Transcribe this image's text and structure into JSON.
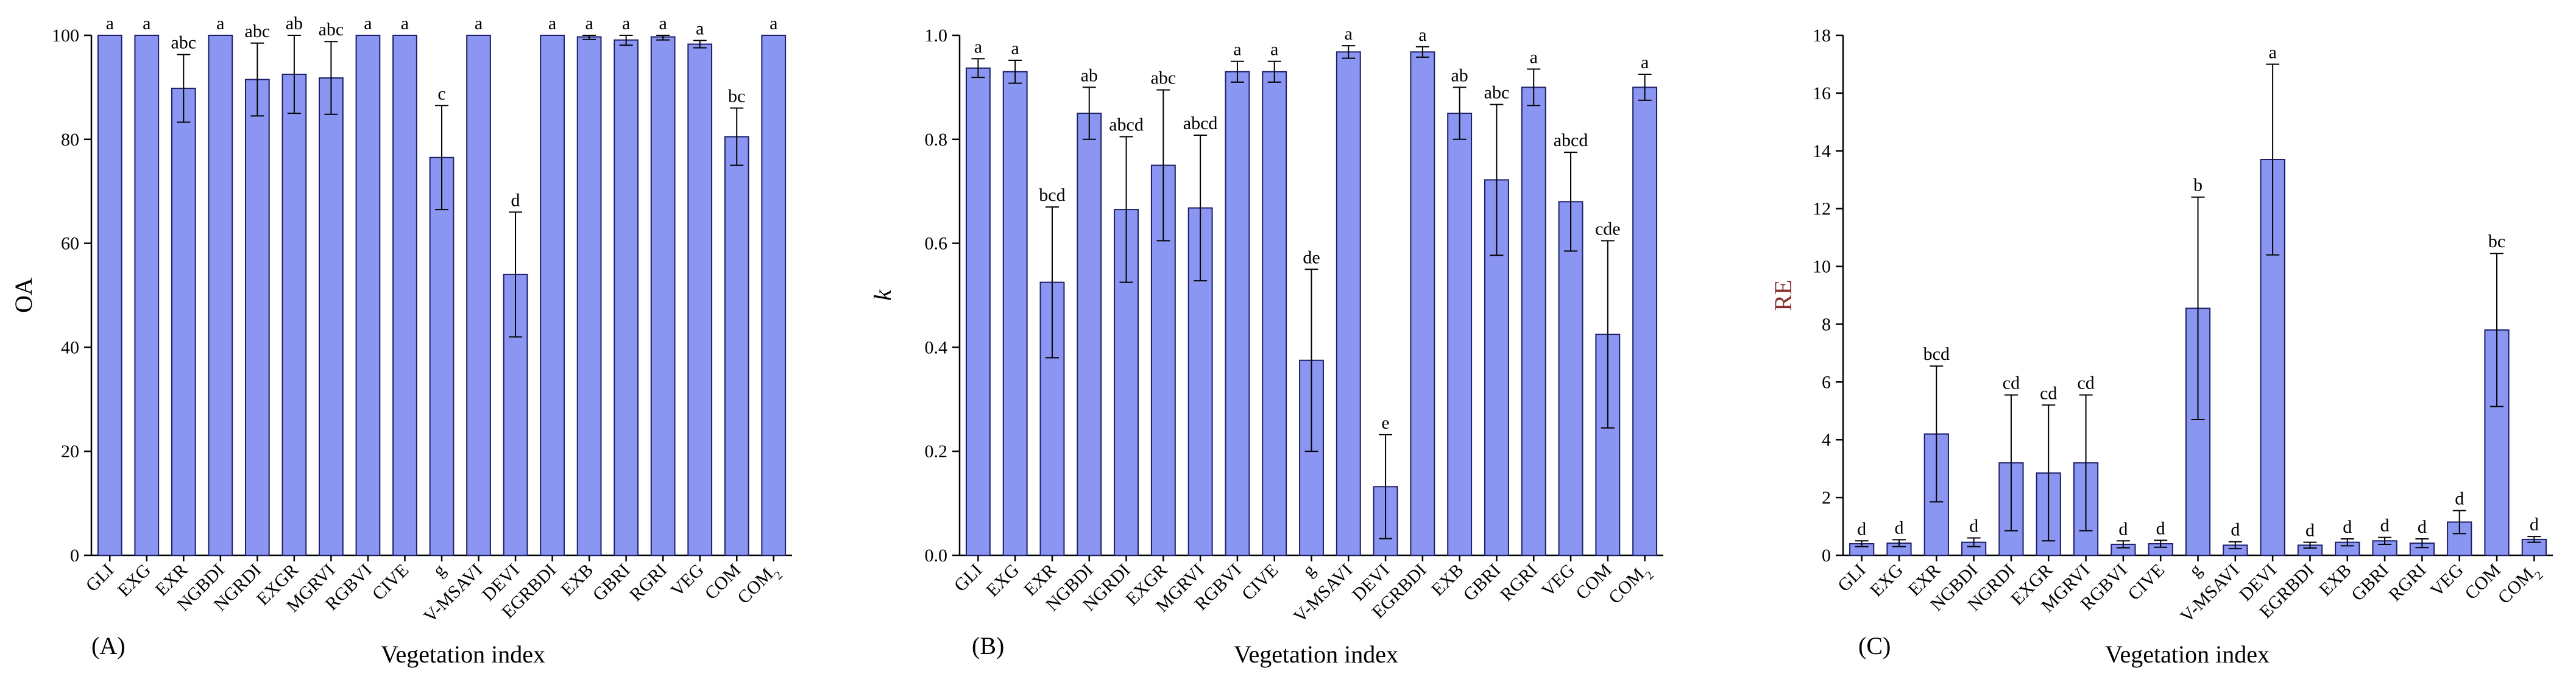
{
  "colors": {
    "bar": "#8b96f2",
    "bar_edge": "#1c1f66",
    "axis": "#000000",
    "re_label": "#8b2b2b"
  },
  "chart_data": [
    {
      "type": "bar",
      "panel_label": "(A)",
      "ylabel": "OA",
      "xlabel": "Vegetation index",
      "ylim": [
        0,
        100
      ],
      "yticks": [
        "0",
        "20",
        "40",
        "60",
        "80",
        "100"
      ],
      "categories": [
        "GLI",
        "EXG",
        "EXR",
        "NGBDI",
        "NGRDI",
        "EXGR",
        "MGRVI",
        "RGBVI",
        "CIVE",
        "g",
        "V-MSAVI",
        "DEVI",
        "EGRBDI",
        "EXB",
        "GBRI",
        "RGRI",
        "VEG",
        "COM",
        "COM2"
      ],
      "values": [
        100,
        100,
        89.8,
        100,
        91.5,
        92.5,
        91.8,
        100,
        100,
        76.5,
        100,
        54,
        100,
        99.7,
        99.1,
        99.7,
        98.3,
        80.5,
        100
      ],
      "errors": [
        0,
        0,
        6.5,
        0,
        7,
        7.5,
        7,
        0,
        0,
        10,
        0,
        12,
        0,
        0.5,
        1,
        0.6,
        0.7,
        5.5,
        0
      ],
      "significance": [
        "a",
        "a",
        "abc",
        "a",
        "abc",
        "ab",
        "abc",
        "a",
        "a",
        "c",
        "a",
        "d",
        "a",
        "a",
        "a",
        "a",
        "a",
        "bc",
        "a"
      ]
    },
    {
      "type": "bar",
      "panel_label": "(B)",
      "ylabel": "k",
      "xlabel": "Vegetation index",
      "ylim": [
        0,
        1.0
      ],
      "yticks": [
        "0.0",
        "0.2",
        "0.4",
        "0.6",
        "0.8",
        "1.0"
      ],
      "categories": [
        "GLI",
        "EXG",
        "EXR",
        "NGBDI",
        "NGRDI",
        "EXGR",
        "MGRVI",
        "RGBVI",
        "CIVE",
        "g",
        "V-MSAVI",
        "DEVI",
        "EGRBDI",
        "EXB",
        "GBRI",
        "RGRI",
        "VEG",
        "COM",
        "COM2"
      ],
      "values": [
        0.937,
        0.93,
        0.525,
        0.85,
        0.665,
        0.75,
        0.668,
        0.93,
        0.93,
        0.375,
        0.968,
        0.132,
        0.968,
        0.85,
        0.722,
        0.9,
        0.68,
        0.425,
        0.9
      ],
      "errors": [
        0.018,
        0.022,
        0.145,
        0.05,
        0.14,
        0.145,
        0.14,
        0.02,
        0.02,
        0.175,
        0.012,
        0.1,
        0.01,
        0.05,
        0.145,
        0.035,
        0.095,
        0.18,
        0.025
      ],
      "significance": [
        "a",
        "a",
        "bcd",
        "ab",
        "abcd",
        "abc",
        "abcd",
        "a",
        "a",
        "de",
        "a",
        "e",
        "a",
        "ab",
        "abc",
        "a",
        "abcd",
        "cde",
        "a"
      ]
    },
    {
      "type": "bar",
      "panel_label": "(C)",
      "ylabel": "RE",
      "xlabel": "Vegetation index",
      "ylim": [
        0,
        18
      ],
      "yticks": [
        "0",
        "2",
        "4",
        "6",
        "8",
        "10",
        "12",
        "14",
        "16",
        "18"
      ],
      "categories": [
        "GLI",
        "EXG",
        "EXR",
        "NGBDI",
        "NGRDI",
        "EXGR",
        "MGRVI",
        "RGBVI",
        "CIVE",
        "g",
        "V-MSAVI",
        "DEVI",
        "EGRBDI",
        "EXB",
        "GBRI",
        "RGRI",
        "VEG",
        "COM",
        "COM2"
      ],
      "values": [
        0.4,
        0.42,
        4.2,
        0.45,
        3.2,
        2.85,
        3.2,
        0.38,
        0.4,
        8.55,
        0.35,
        13.7,
        0.35,
        0.45,
        0.5,
        0.42,
        1.15,
        7.8,
        0.55
      ],
      "errors": [
        0.1,
        0.12,
        2.35,
        0.15,
        2.35,
        2.35,
        2.35,
        0.12,
        0.12,
        3.85,
        0.12,
        3.3,
        0.1,
        0.12,
        0.12,
        0.15,
        0.4,
        2.65,
        0.1
      ],
      "significance": [
        "d",
        "d",
        "bcd",
        "d",
        "cd",
        "cd",
        "cd",
        "d",
        "d",
        "b",
        "d",
        "a",
        "d",
        "d",
        "d",
        "d",
        "d",
        "bc",
        "d"
      ]
    }
  ]
}
